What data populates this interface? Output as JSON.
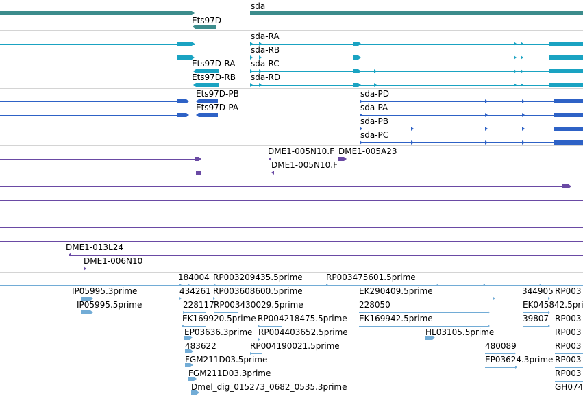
{
  "colors": {
    "gene": "#3c8c8c",
    "cdna_teal": "#1aa3c2",
    "mrna_blue": "#2e62c6",
    "clone_purple": "#6a4aa4",
    "est_light": "#72acd6",
    "divider": "#d4d4d4"
  },
  "labels": {
    "gene_sda": "sda",
    "gene_ets97d": "Ets97D",
    "sda_ra": "sda-RA",
    "sda_rb": "sda-RB",
    "sda_rc": "sda-RC",
    "sda_rd": "sda-RD",
    "ets97d_ra": "Ets97D-RA",
    "ets97d_rb": "Ets97D-RB",
    "ets97d_pb": "Ets97D-PB",
    "ets97d_pa": "Ets97D-PA",
    "sda_pd": "sda-PD",
    "sda_pa": "sda-PA",
    "sda_pb": "sda-PB",
    "sda_pc": "sda-PC",
    "clone_005n10_f_a": "DME1-005N10.F",
    "clone_005a23": "DME1-005A23",
    "clone_005n10_f_b": "DME1-005N10.F",
    "clone_013l24": "DME1-013L24",
    "clone_006n10": "DME1-006N10",
    "est_184004": "184004",
    "est_rp003209435": "RP003209435.5prime",
    "est_rp003475601": "RP003475601.5prime",
    "est_ip05995_3": "IP05995.3prime",
    "est_434261": "434261",
    "est_rp003608600": "RP003608600.5prime",
    "est_ek290409": "EK290409.5prime",
    "est_344905": "344905",
    "est_rp003_a": "RP003",
    "est_ip05995_5": "IP05995.5prime",
    "est_228117": "228117",
    "est_rp003430029": "RP003430029.5prime",
    "est_228050": "228050",
    "est_ek045842": "EK045842.5prime",
    "est_ek169920": "EK169920.5prime",
    "est_rp004218475": "RP004218475.5prime",
    "est_ek169942": "EK169942.5prime",
    "est_39807": "39807",
    "est_rp003_b": "RP003",
    "est_ep03636": "EP03636.3prime",
    "est_rp004403652": "RP004403652.5prime",
    "est_hl03105": "HL03105.5prime",
    "est_rp003_c": "RP003",
    "est_483622": "483622",
    "est_rp004190021": "RP004190021.5prime",
    "est_480089": "480089",
    "est_rp003_d": "RP003",
    "est_fgm211d03_5": "FGM211D03.5prime",
    "est_ep03624": "EP03624.3prime",
    "est_rp003_e": "RP003",
    "est_fgm211d03_3": "FGM211D03.3prime",
    "est_rp003_f": "RP003",
    "est_dmel_dig": "Dmel_dig_015273_0682_0535.3prime",
    "est_gh074": "GH074"
  }
}
